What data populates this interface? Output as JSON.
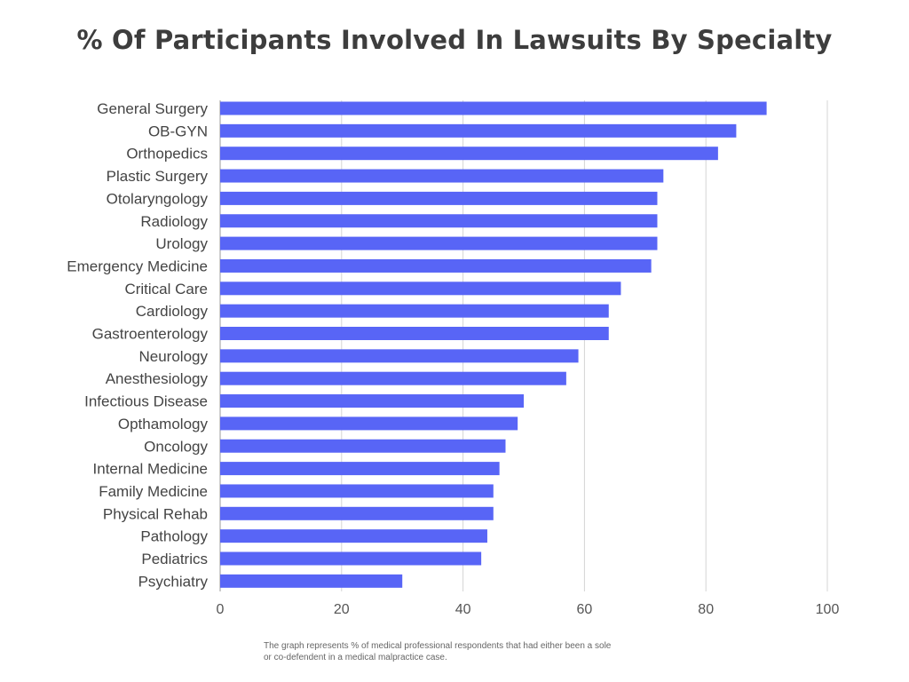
{
  "chart_data": {
    "type": "bar",
    "orientation": "horizontal",
    "title": "% Of Participants Involved In Lawsuits By Specialty",
    "categories": [
      "General Surgery",
      "OB-GYN",
      "Orthopedics",
      "Plastic Surgery",
      "Otolaryngology",
      "Radiology",
      "Urology",
      "Emergency Medicine",
      "Critical Care",
      "Cardiology",
      "Gastroenterology",
      "Neurology",
      "Anesthesiology",
      "Infectious Disease",
      "Opthamology",
      "Oncology",
      "Internal Medicine",
      "Family Medicine",
      "Physical Rehab",
      "Pathology",
      "Pediatrics",
      "Psychiatry"
    ],
    "values": [
      90,
      85,
      82,
      73,
      72,
      72,
      72,
      71,
      66,
      64,
      64,
      59,
      57,
      50,
      49,
      47,
      46,
      45,
      45,
      44,
      43,
      30
    ],
    "xlim": [
      0,
      100
    ],
    "xticks": [
      "0",
      "20",
      "40",
      "60",
      "80",
      "100"
    ],
    "grid": "vertical",
    "legend": "none",
    "colors": {
      "bar": "#5865f6",
      "grid": "#d4d4d4",
      "axis": "#9a9a9a",
      "label": "#444444",
      "tick": "#555555"
    }
  },
  "footnote": {
    "line1": "The graph represents % of medical professional respondents that had either been a sole",
    "line2": "or co-defendent in a medical malpractice case."
  }
}
